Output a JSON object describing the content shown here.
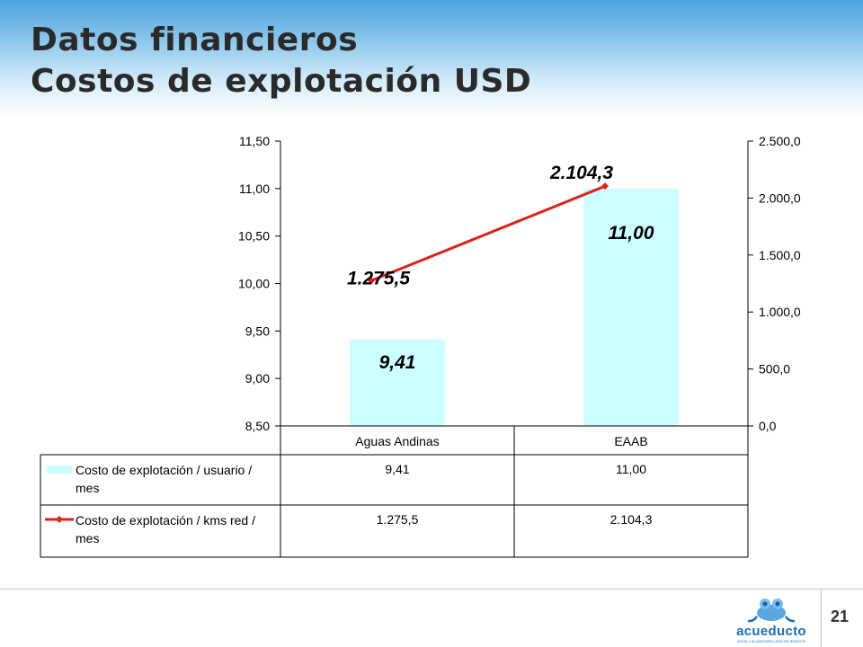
{
  "title": {
    "line1": "Datos financieros",
    "line2": "Costos de explotación USD"
  },
  "chart_data": {
    "type": "bar",
    "categories": [
      "Aguas Andinas",
      "EAAB"
    ],
    "series": [
      {
        "name": "Costo de explotación / usuario / mes",
        "type": "bar",
        "axis": "left",
        "values": [
          9.41,
          11.0
        ],
        "labels": [
          "9,41",
          "11,00"
        ],
        "color": "#ccffff"
      },
      {
        "name": "Costo de explotación / kms red / mes",
        "type": "line",
        "axis": "right",
        "values": [
          1275.5,
          2104.3
        ],
        "labels": [
          "1.275,5",
          "2.104,3"
        ],
        "color": "#e0201b"
      }
    ],
    "y_left": {
      "min": 8.5,
      "max": 11.5,
      "ticks": [
        8.5,
        9.0,
        9.5,
        10.0,
        10.5,
        11.0,
        11.5
      ],
      "tick_labels": [
        "8,50",
        "9,00",
        "9,50",
        "10,00",
        "10,50",
        "11,00",
        "11,50"
      ]
    },
    "y_right": {
      "min": 0,
      "max": 2500,
      "ticks": [
        0,
        500,
        1000,
        1500,
        2000,
        2500
      ],
      "tick_labels": [
        "0,0",
        "500,0",
        "1.000,0",
        "1.500,0",
        "2.000,0",
        "2.500,0"
      ]
    },
    "data_table": {
      "rows": [
        {
          "legend_lines": [
            "Costo de explotación / usuario /",
            "mes"
          ],
          "cells": [
            "9,41",
            "11,00"
          ]
        },
        {
          "legend_lines": [
            "Costo de explotación / kms red /",
            "mes"
          ],
          "cells": [
            "1.275,5",
            "2.104,3"
          ]
        }
      ]
    },
    "grid": false
  },
  "footer": {
    "page_number": "21",
    "logo_text": "acueducto",
    "logo_subtext": "AGUA Y ALCANTARILLADO DE BOGOTÁ"
  }
}
